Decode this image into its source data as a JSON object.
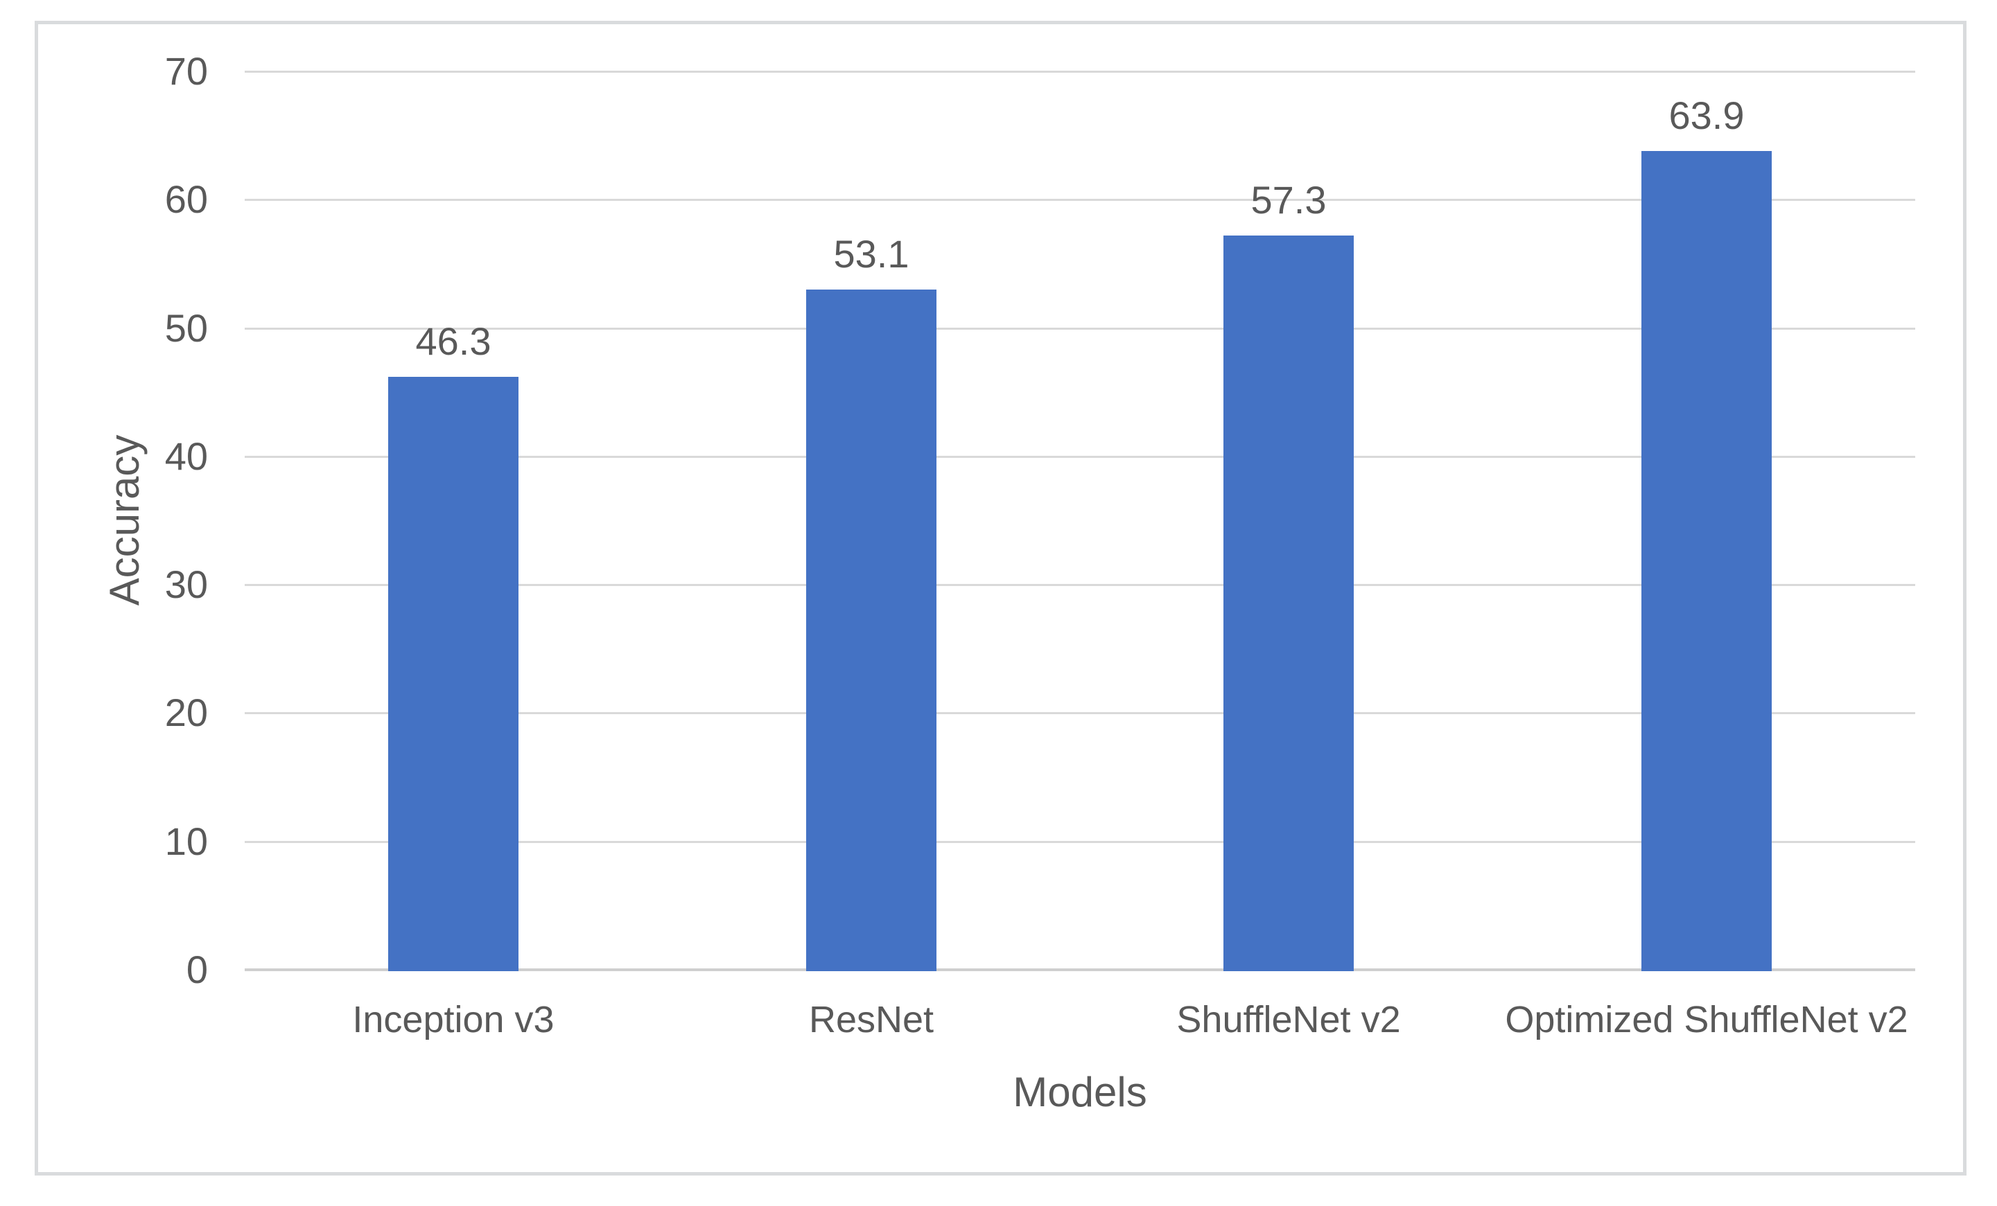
{
  "chart_data": {
    "type": "bar",
    "title": "",
    "categories": [
      "Inception v3",
      "ResNet",
      "ShuffleNet v2",
      "Optimized ShuffleNet v2"
    ],
    "values": [
      46.3,
      53.1,
      57.3,
      63.9
    ],
    "data_labels": [
      "46.3",
      "53.1",
      "57.3",
      "63.9"
    ],
    "xlabel": "Models",
    "ylabel": "Accuracy",
    "ylim": [
      0,
      70
    ],
    "yticks": [
      0,
      10,
      20,
      30,
      40,
      50,
      60,
      70
    ],
    "grid": "horizontal",
    "legend": "none",
    "colors": {
      "bar": "#4472C4",
      "text": "#595959",
      "gridline": "#D9D9D9",
      "axis_line": "#CFCFCF",
      "frame_border": "#D9DBDD",
      "background": "#FFFFFF"
    }
  }
}
